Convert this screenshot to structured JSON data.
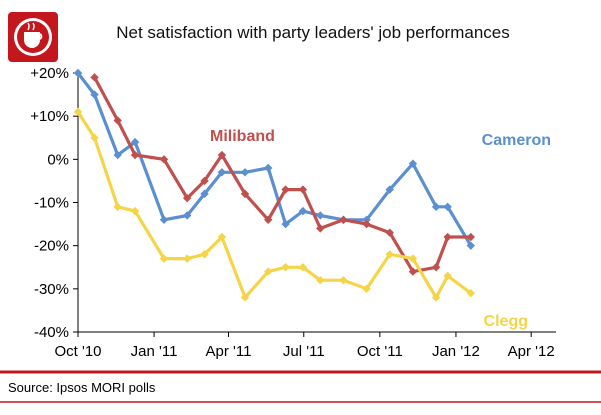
{
  "chart_data": {
    "type": "line",
    "title": "Net satisfaction with party leaders' job performances",
    "source": "Source: Ipsos MORI polls",
    "x": [
      "2010-10-01",
      "2010-10-21",
      "2010-11-18",
      "2010-12-09",
      "2011-01-13",
      "2011-02-10",
      "2011-03-03",
      "2011-03-24",
      "2011-04-21",
      "2011-05-19",
      "2011-06-09",
      "2011-06-30",
      "2011-07-21",
      "2011-08-18",
      "2011-09-15",
      "2011-10-13",
      "2011-11-10",
      "2011-12-08",
      "2011-12-22",
      "2012-01-19",
      "2012-02-16",
      "2012-03-15",
      "2012-04-05",
      "2012-05-03"
    ],
    "x_ticks": [
      "Oct '10",
      "Jan '11",
      "Apr '11",
      "Jul '11",
      "Oct '11",
      "Jan '12",
      "Apr '12"
    ],
    "x_tick_dates": [
      "2010-10-01",
      "2011-01-01",
      "2011-04-01",
      "2011-07-01",
      "2011-10-01",
      "2012-01-01",
      "2012-04-01"
    ],
    "y_ticks": [
      "+20%",
      "+10%",
      "0%",
      "-10%",
      "-20%",
      "-30%",
      "-40%"
    ],
    "y_tick_values": [
      20,
      10,
      0,
      -10,
      -20,
      -30,
      -40
    ],
    "ylim": [
      -40,
      20
    ],
    "grid": false,
    "series": [
      {
        "name": "Cameron",
        "color": "#5b8fd0",
        "values": [
          20,
          15,
          1,
          4,
          -14,
          -13,
          -8,
          -3,
          -3,
          -2,
          -15,
          -12,
          -13,
          -14,
          -14,
          -7,
          -1,
          -11,
          -11,
          -20,
          null,
          null,
          null,
          null
        ]
      },
      {
        "name": "Miliband",
        "color": "#c0504d",
        "values": [
          null,
          19,
          9,
          1,
          0,
          -9,
          -5,
          1,
          -8,
          -14,
          -7,
          -7,
          -16,
          -14,
          -15,
          -17,
          -26,
          -25,
          -18,
          -18,
          null,
          null,
          null,
          null
        ]
      },
      {
        "name": "Clegg",
        "color": "#f5d547",
        "values": [
          11,
          5,
          -11,
          -12,
          -23,
          -23,
          -22,
          -18,
          -32,
          -26,
          -25,
          -25,
          -28,
          -28,
          -30,
          -22,
          -23,
          -32,
          -27,
          -31,
          null,
          null,
          null,
          null
        ]
      }
    ]
  }
}
